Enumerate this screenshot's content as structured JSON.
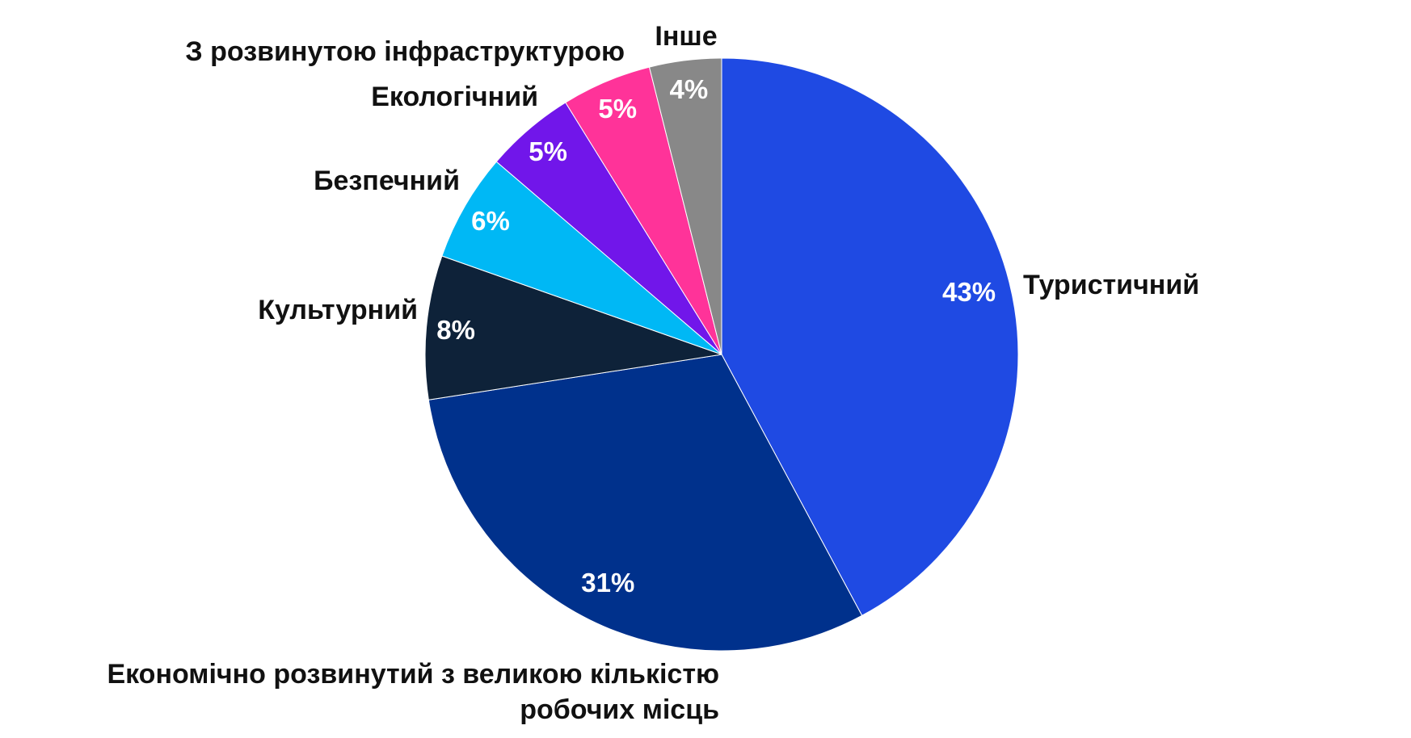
{
  "chart_data": {
    "type": "pie",
    "categories": [
      "Туристичний",
      "Економічно розвинутий з великою кількістю робочих місць",
      "Культурний",
      "Безпечний",
      "Екологічний",
      "З розвинутою інфраструктурою",
      "Інше"
    ],
    "values": [
      43,
      31,
      8,
      6,
      5,
      5,
      4
    ],
    "value_labels": [
      "43%",
      "31%",
      "8%",
      "6%",
      "5%",
      "5%",
      "4%"
    ],
    "colors": [
      "#1f4ae3",
      "#00318c",
      "#0e2239",
      "#00b8f5",
      "#7116ea",
      "#ff3399",
      "#888888"
    ]
  }
}
